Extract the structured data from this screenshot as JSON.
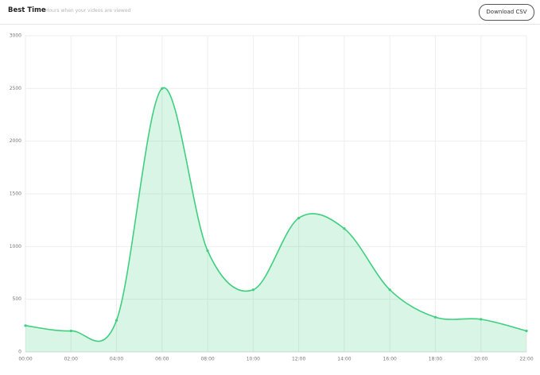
{
  "header": {
    "title": "Best Time",
    "subtitle": "Hours when your videos are viewed",
    "button": "Download CSV"
  },
  "chart_data": {
    "type": "area",
    "categories": [
      "00:00",
      "02:00",
      "04:00",
      "06:00",
      "08:00",
      "10:00",
      "12:00",
      "14:00",
      "16:00",
      "18:00",
      "20:00",
      "22:00"
    ],
    "values": [
      250,
      200,
      300,
      2500,
      960,
      590,
      1270,
      1170,
      590,
      330,
      310,
      200
    ],
    "color": "#3ecf7f",
    "ylim": [
      0,
      3000
    ],
    "yticks": [
      0,
      500,
      1000,
      1500,
      2000,
      2500,
      3000
    ],
    "grid": true
  }
}
